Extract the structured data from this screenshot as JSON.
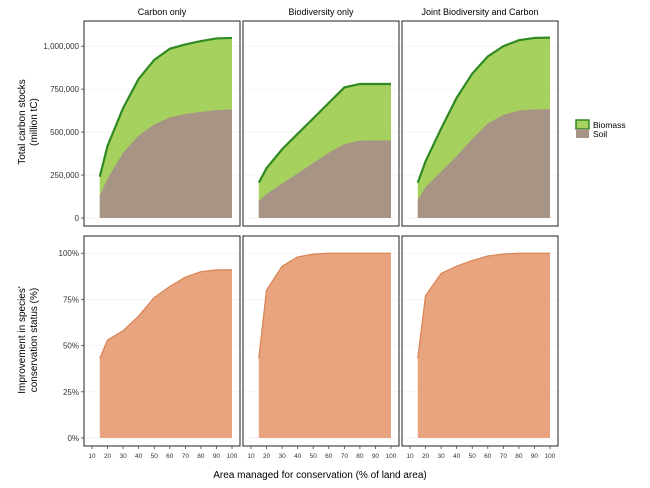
{
  "facets": [
    "Carbon only",
    "Biodiversity only",
    "Joint Biodiversity and Carbon"
  ],
  "xlabel": "Area managed for conservation (% of land area)",
  "top_ylabel": [
    "Total carbon stocks",
    "(million tC)"
  ],
  "bottom_ylabel": [
    "Improvement in species'",
    "conservation status (%)"
  ],
  "legend": {
    "items": [
      "Biomass",
      "Soil"
    ]
  },
  "colors": {
    "biomass_fill": "#a6d15e",
    "biomass_line": "#2f8a22",
    "soil_fill": "#a79485",
    "species_fill": "#e8a47f",
    "species_line": "#d98656",
    "panel_border": "#222222",
    "grid": "#eeeeee"
  },
  "chart_data": [
    {
      "type": "area",
      "panel": "Carbon only",
      "x": [
        15,
        20,
        30,
        40,
        50,
        60,
        70,
        80,
        90,
        100
      ],
      "series": [
        {
          "name": "Soil",
          "values": [
            130000,
            230000,
            380000,
            480000,
            545000,
            585000,
            605000,
            618000,
            628000,
            632000
          ]
        },
        {
          "name": "Biomass",
          "values": [
            240000,
            420000,
            640000,
            810000,
            920000,
            985000,
            1010000,
            1030000,
            1045000,
            1048000
          ]
        }
      ],
      "ylim": [
        0,
        1100000
      ],
      "yticks": [
        "0",
        "250,000",
        "500,000",
        "750,000",
        "1,000,000"
      ],
      "xlim": [
        10,
        100
      ]
    },
    {
      "type": "area",
      "panel": "Biodiversity only",
      "x": [
        15,
        20,
        30,
        40,
        50,
        60,
        70,
        80,
        90,
        100
      ],
      "series": [
        {
          "name": "Soil",
          "values": [
            100000,
            140000,
            200000,
            260000,
            320000,
            380000,
            430000,
            450000,
            452000,
            452000
          ]
        },
        {
          "name": "Biomass",
          "values": [
            205000,
            290000,
            400000,
            490000,
            580000,
            670000,
            760000,
            780000,
            780000,
            780000
          ]
        }
      ],
      "ylim": [
        0,
        1100000
      ],
      "xlim": [
        10,
        100
      ]
    },
    {
      "type": "area",
      "panel": "Joint Biodiversity and Carbon",
      "x": [
        15,
        20,
        30,
        40,
        50,
        60,
        70,
        80,
        90,
        100
      ],
      "series": [
        {
          "name": "Soil",
          "values": [
            105000,
            180000,
            270000,
            360000,
            460000,
            550000,
            600000,
            625000,
            632000,
            634000
          ]
        },
        {
          "name": "Biomass",
          "values": [
            205000,
            330000,
            520000,
            700000,
            840000,
            940000,
            1000000,
            1035000,
            1048000,
            1050000
          ]
        }
      ],
      "ylim": [
        0,
        1100000
      ],
      "xlim": [
        10,
        100
      ]
    },
    {
      "type": "area",
      "panel": "Carbon only",
      "x": [
        15,
        20,
        30,
        40,
        50,
        60,
        70,
        80,
        90,
        100
      ],
      "values": [
        43,
        53,
        58,
        66,
        76,
        82,
        87,
        90,
        91,
        91
      ],
      "ylim": [
        0,
        105
      ],
      "yticks": [
        "0%",
        "25%",
        "50%",
        "75%",
        "100%"
      ],
      "xlim": [
        10,
        100
      ],
      "xticks": [
        "10",
        "20",
        "30",
        "40",
        "50",
        "60",
        "70",
        "80",
        "90",
        "100"
      ]
    },
    {
      "type": "area",
      "panel": "Biodiversity only",
      "x": [
        15,
        20,
        30,
        40,
        50,
        60,
        70,
        80,
        90,
        100
      ],
      "values": [
        43,
        80,
        93,
        98,
        99.5,
        100,
        100,
        100,
        100,
        100
      ],
      "ylim": [
        0,
        105
      ],
      "xlim": [
        10,
        100
      ],
      "xticks": [
        "10",
        "20",
        "30",
        "40",
        "50",
        "60",
        "70",
        "80",
        "90",
        "100"
      ]
    },
    {
      "type": "area",
      "panel": "Joint Biodiversity and Carbon",
      "x": [
        15,
        20,
        30,
        40,
        50,
        60,
        70,
        80,
        90,
        100
      ],
      "values": [
        43,
        77,
        89,
        93,
        96,
        98.5,
        99.5,
        100,
        100,
        100
      ],
      "ylim": [
        0,
        105
      ],
      "xlim": [
        10,
        100
      ],
      "xticks": [
        "10",
        "20",
        "30",
        "40",
        "50",
        "60",
        "70",
        "80",
        "90",
        "100"
      ]
    }
  ]
}
